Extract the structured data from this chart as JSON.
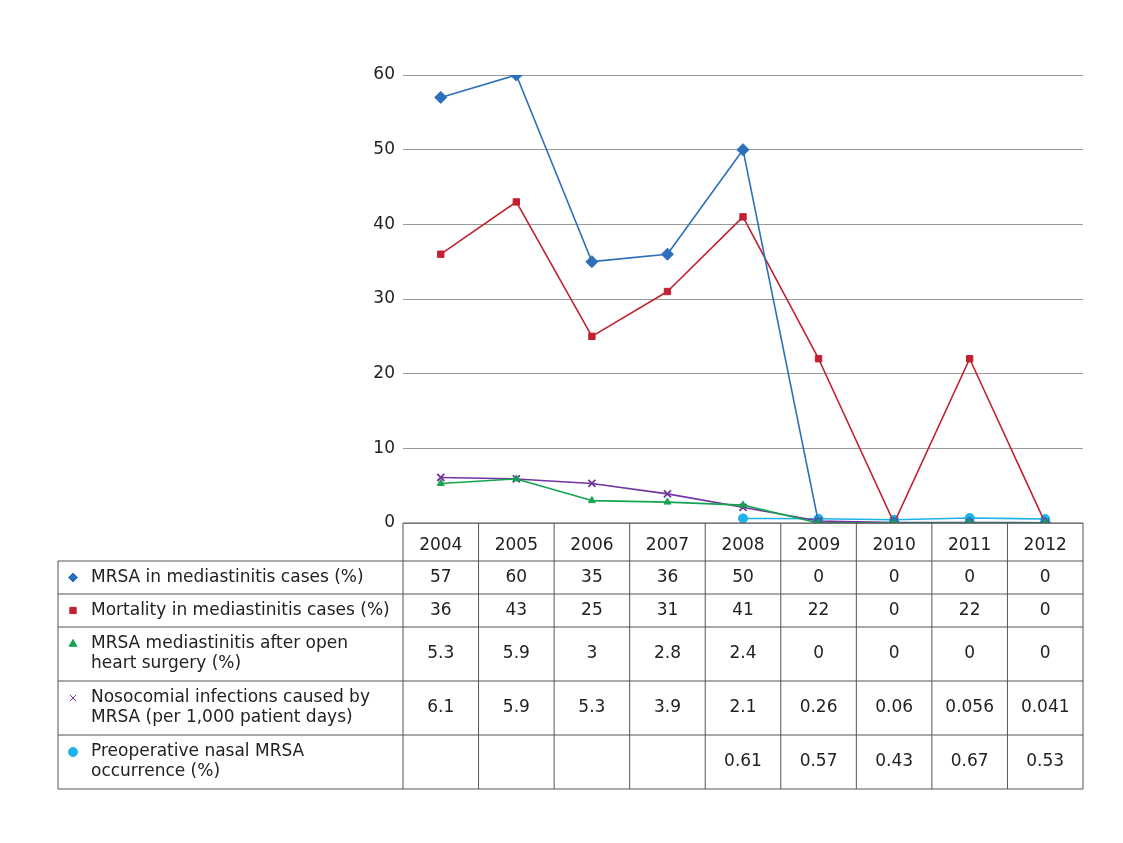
{
  "chart_data": {
    "type": "line",
    "categories": [
      "2004",
      "2005",
      "2006",
      "2007",
      "2008",
      "2009",
      "2010",
      "2011",
      "2012"
    ],
    "series": [
      {
        "name": "MRSA in mediastinitis cases (%)",
        "color": "#2b70b8",
        "marker": "diamond",
        "values": [
          57,
          60,
          35,
          36,
          50,
          0,
          0,
          0,
          0
        ]
      },
      {
        "name": "Mortality in mediastinitis cases (%)",
        "color": "#c22131",
        "marker": "square",
        "values": [
          36,
          43,
          25,
          31,
          41,
          22,
          0,
          22,
          0
        ]
      },
      {
        "name": "MRSA mediastinitis after open heart surgery (%)",
        "color": "#16a34f",
        "marker": "triangle",
        "values": [
          5.3,
          5.9,
          3,
          2.8,
          2.4,
          0,
          0,
          0,
          0
        ]
      },
      {
        "name": "Nosocomial infections caused by MRSA (per 1,000 patient days)",
        "color": "#7334a0",
        "marker": "cross",
        "values": [
          6.1,
          5.9,
          5.3,
          3.9,
          2.1,
          0.26,
          0.06,
          0.056,
          0.041
        ]
      },
      {
        "name": "Preoperative nasal MRSA occurrence (%)",
        "color": "#1db2ea",
        "marker": "circle",
        "values": [
          null,
          null,
          null,
          null,
          0.61,
          0.57,
          0.43,
          0.67,
          0.53
        ]
      }
    ],
    "ylim": [
      0,
      60
    ],
    "yticks": [
      0,
      10,
      20,
      30,
      40,
      50,
      60
    ],
    "grid": "y",
    "legend": "bottom left",
    "data_labels": true,
    "line_style": "solid"
  }
}
